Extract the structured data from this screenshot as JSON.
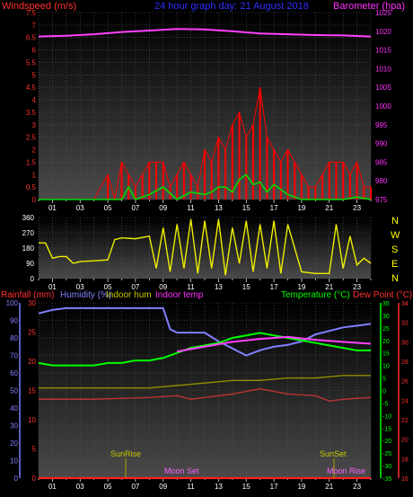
{
  "header": {
    "wind_title": "Windspeed (m/s)",
    "graph_title": "24 hour graph day: 21 August 2018",
    "baro_title": "Barometer (hpa)"
  },
  "colors": {
    "wind_title": "#ff3030",
    "graph_title": "#3030ff",
    "baro_title": "#ff30ff",
    "wind_left_ticks": "#ff3030",
    "baro_ticks": "#ff30ff",
    "gust": "#ff0000",
    "avg_wind": "#00dd00",
    "barometer": "#ff40ff",
    "wind_direction": "#eeee00",
    "rain_ticks": "#ff3030",
    "humidity_ticks": "#8080ff",
    "temp_ticks": "#00ff00",
    "dew_ticks": "#ff3030",
    "humidity": "#8080ff",
    "temperature": "#00ff00",
    "dew_point": "#ff40ff",
    "indoor_temp": "#909000",
    "indoor_hum": "#bb3333",
    "rainfall": "#ff2020",
    "sun_moon": "#c8c800",
    "moon": "#ff60ff",
    "x_ticks": "#ffffff"
  },
  "wind_panel": {
    "left_ticks": [
      "0",
      "0.5",
      "1",
      "1.5",
      "2",
      "2.5",
      "3",
      "3.5",
      "4",
      "4.5",
      "5",
      "5.5",
      "6",
      "6.5",
      "7",
      "7.5"
    ],
    "baro_ticks": [
      "975",
      "980",
      "985",
      "990",
      "995",
      "1000",
      "1005",
      "1010",
      "1015",
      "1020",
      "1025"
    ]
  },
  "dir_panel": {
    "ticks": [
      "0",
      "90",
      "180",
      "270",
      "360"
    ],
    "compass": [
      "N",
      "W",
      "S",
      "E",
      "N"
    ]
  },
  "lower_panel": {
    "rain_title": "Rainfall (mm)",
    "humidity_title": "Humidity (%)",
    "indoor_hum_title": "Indoor hum",
    "indoor_temp_title": "Indoor temp",
    "temp_title": "Temperature (°C)",
    "dew_title": "Dew Point (°C)",
    "rain_ticks": [
      "0",
      "5",
      "10",
      "15",
      "20",
      "25",
      "30"
    ],
    "humidity_ticks": [
      "0",
      "10",
      "20",
      "30",
      "40",
      "50",
      "60",
      "70",
      "80",
      "90",
      "100"
    ],
    "temp_ticks": [
      "-35",
      "-30",
      "-25",
      "-20",
      "-15",
      "-10",
      "-5",
      "0",
      "5",
      "10",
      "15",
      "20",
      "25",
      "30",
      "35"
    ],
    "dew_ticks": [
      "16",
      "18",
      "20",
      "22",
      "24",
      "26",
      "28",
      "30",
      "32",
      "34"
    ],
    "annotations": {
      "sunrise": "SunRise",
      "sunset": "SunSet",
      "moonset": "Moon Set",
      "moonrise": "Moon Rise"
    }
  },
  "x_axis": {
    "hour_labels": [
      "01",
      "03",
      "05",
      "07",
      "09",
      "11",
      "13",
      "15",
      "17",
      "19",
      "21",
      "23"
    ]
  },
  "chart_data": [
    {
      "type": "line",
      "panel": "wind",
      "title": "24 hour graph day: 21 August 2018",
      "x_unit": "hour",
      "xlim": [
        0,
        24
      ],
      "ylabel": "Windspeed (m/s)",
      "ylim": [
        0,
        7.5
      ],
      "y2label": "Barometer (hpa)",
      "y2lim": [
        975,
        1025
      ],
      "series": [
        {
          "key": "barometer",
          "axis": "y2",
          "x": [
            0,
            2,
            4,
            6,
            8,
            10,
            12,
            14,
            16,
            18,
            20,
            22,
            24
          ],
          "values": [
            1018.6,
            1018.8,
            1019.2,
            1019.8,
            1020.2,
            1020.6,
            1020.5,
            1020.0,
            1019.4,
            1019.2,
            1019.0,
            1018.9,
            1018.6
          ]
        },
        {
          "key": "gust",
          "axis": "y",
          "style": "bars",
          "x": [
            0,
            2,
            4,
            5,
            5.5,
            6,
            6.5,
            7,
            7.5,
            8,
            8.5,
            9,
            9.5,
            10,
            10.5,
            11,
            11.5,
            12,
            12.5,
            13,
            13.5,
            14,
            14.5,
            15,
            15.5,
            16,
            16.5,
            17,
            17.5,
            18,
            18.5,
            19,
            19.5,
            20,
            20.5,
            21,
            21.5,
            22,
            22.5,
            23,
            23.5,
            24
          ],
          "values": [
            0,
            0,
            0,
            1.0,
            0,
            1.5,
            1.0,
            0.5,
            1.0,
            1.5,
            1.5,
            1.5,
            0.5,
            1.0,
            1.5,
            1.0,
            0.5,
            2.0,
            1.5,
            2.5,
            2.0,
            3.0,
            3.5,
            2.5,
            3.0,
            4.5,
            2.5,
            2.0,
            1.5,
            2.0,
            1.5,
            1.0,
            0.5,
            0.5,
            1.0,
            1.5,
            1.5,
            1.5,
            1.0,
            1.5,
            0.5,
            0.5
          ]
        },
        {
          "key": "avg_wind",
          "axis": "y",
          "x": [
            0,
            3,
            6,
            6.5,
            7,
            8,
            9,
            10,
            11,
            12,
            12.5,
            13,
            13.5,
            14,
            14.5,
            15,
            15.5,
            16,
            16.5,
            17,
            17.5,
            18,
            19,
            20,
            21,
            22,
            23,
            24
          ],
          "values": [
            0,
            0,
            0,
            0.5,
            0,
            0.2,
            0.5,
            0,
            0.3,
            0.2,
            0.3,
            0.5,
            0.5,
            0.3,
            0.8,
            1.0,
            0.6,
            0.7,
            0.3,
            0.6,
            0.4,
            0.2,
            0,
            0,
            0,
            0,
            0.1,
            0
          ]
        }
      ]
    },
    {
      "type": "line",
      "panel": "direction",
      "ylim": [
        0,
        360
      ],
      "series": [
        {
          "key": "wind_direction",
          "x": [
            0,
            0.5,
            1,
            1.5,
            2,
            2.5,
            3,
            4,
            5,
            5.5,
            6,
            7,
            8,
            8.5,
            9,
            9.5,
            10,
            10.5,
            11,
            11.5,
            12,
            12.5,
            13,
            13.5,
            14,
            14.5,
            15,
            15.5,
            16,
            16.5,
            17,
            17.5,
            18,
            19,
            20,
            21,
            21.5,
            22,
            22.5,
            23,
            23.5,
            24
          ],
          "values": [
            210,
            210,
            120,
            130,
            130,
            90,
            100,
            105,
            110,
            230,
            240,
            235,
            250,
            60,
            300,
            40,
            320,
            60,
            350,
            30,
            340,
            60,
            350,
            20,
            300,
            90,
            340,
            40,
            320,
            60,
            340,
            30,
            320,
            40,
            30,
            30,
            320,
            60,
            250,
            80,
            120,
            90
          ]
        }
      ]
    },
    {
      "type": "line",
      "panel": "temperature-humidity",
      "ylabel": "Humidity (%)",
      "ylim": [
        0,
        100
      ],
      "y2label": "Temperature (°C)",
      "y2lim": [
        -35,
        35
      ],
      "y3label": "Dew Point (°C)",
      "y3lim": [
        16,
        34
      ],
      "y4label": "Rainfall (mm)",
      "y4lim": [
        0,
        30
      ],
      "series": [
        {
          "key": "humidity",
          "axis": "humidity",
          "x": [
            0,
            1,
            2,
            4,
            6,
            8,
            9,
            9.5,
            10,
            11,
            12,
            13,
            14,
            14.5,
            15,
            16,
            17,
            18,
            19,
            20,
            21,
            22,
            23,
            24
          ],
          "values": [
            94,
            96,
            97,
            97,
            97,
            97,
            97,
            85,
            83,
            83,
            83,
            78,
            74,
            72,
            70,
            73,
            75,
            76,
            78,
            82,
            84,
            86,
            87,
            88
          ]
        },
        {
          "key": "temperature",
          "axis": "temperature",
          "x": [
            0,
            1,
            2,
            3,
            4,
            5,
            6,
            7,
            8,
            9,
            10,
            11,
            12,
            13,
            14,
            15,
            16,
            17,
            18,
            19,
            20,
            21,
            22,
            23,
            24
          ],
          "values": [
            11,
            10,
            10,
            10,
            10,
            11,
            11,
            12,
            12,
            13,
            15,
            17,
            18,
            19,
            21,
            22,
            23,
            22,
            21,
            20,
            19,
            18,
            17,
            16,
            16
          ]
        },
        {
          "key": "dew_point",
          "axis": "dew",
          "x": [
            10,
            12,
            14,
            16,
            18,
            20,
            22,
            24
          ],
          "values": [
            29,
            29.5,
            30,
            30.3,
            30.5,
            30.2,
            30.0,
            29.8
          ]
        },
        {
          "key": "indoor_temp",
          "axis": "temperature",
          "x": [
            0,
            4,
            8,
            10,
            12,
            14,
            16,
            18,
            20,
            22,
            24
          ],
          "values": [
            1,
            1,
            1,
            2,
            3,
            4,
            4,
            5,
            5,
            6,
            6
          ]
        },
        {
          "key": "indoor_hum",
          "axis": "humidity",
          "x": [
            0,
            4,
            8,
            10,
            11,
            12,
            14,
            16,
            18,
            20,
            21,
            22,
            24
          ],
          "values": [
            45,
            45,
            46,
            47,
            45,
            46,
            48,
            51,
            48,
            47,
            44,
            45,
            46
          ]
        },
        {
          "key": "rainfall",
          "axis": "rain",
          "x": [
            0,
            24
          ],
          "values": [
            0,
            0
          ]
        }
      ]
    }
  ]
}
